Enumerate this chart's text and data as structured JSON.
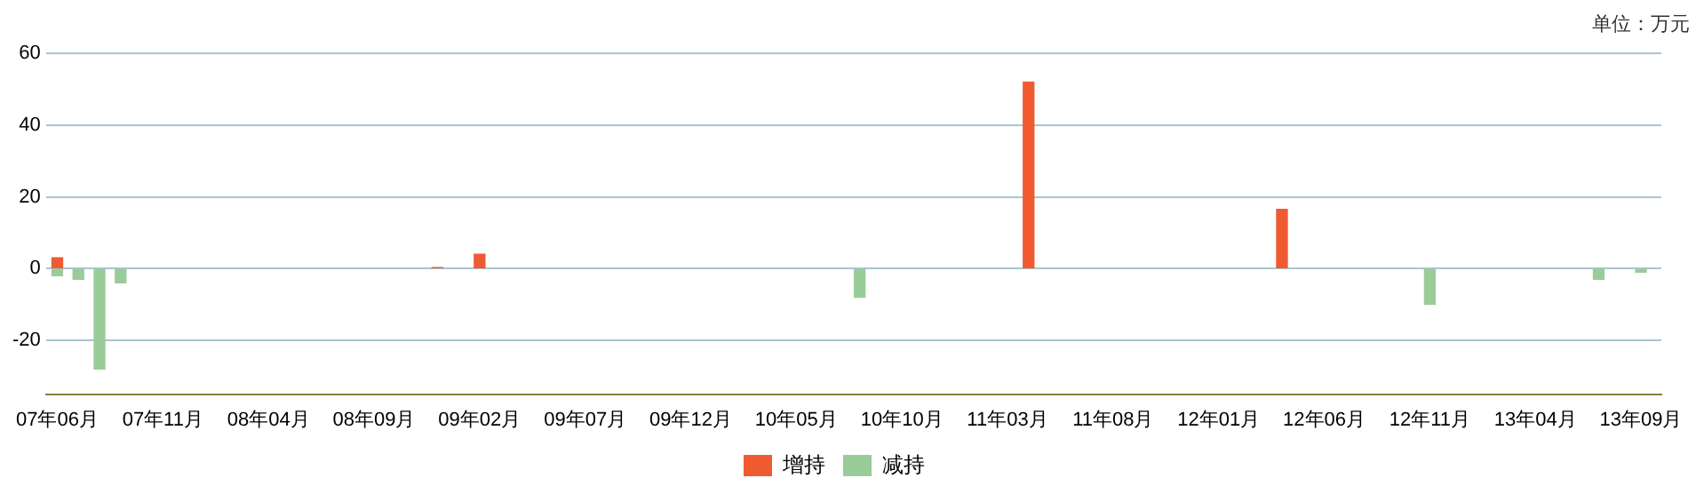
{
  "chart_data": {
    "type": "bar",
    "annotations": [
      "单位：万元"
    ],
    "series": [
      {
        "name": "增持",
        "color": "#f05a30",
        "x": [
          "2007-06",
          "2008-12",
          "2009-02",
          "2011-04",
          "2012-04"
        ],
        "values": [
          3,
          0.3,
          4,
          52,
          16.5
        ]
      },
      {
        "name": "减持",
        "color": "#99cc99",
        "x": [
          "2007-06",
          "2007-07",
          "2007-08",
          "2007-09",
          "2010-08",
          "2012-11",
          "2013-07",
          "2013-09"
        ],
        "values": [
          -2,
          -3,
          -28,
          -4,
          -8,
          -10,
          -3,
          -1
        ]
      }
    ],
    "xlim": [
      "2007-05-15",
      "2013-09-30"
    ],
    "xticks": [
      {
        "value": "2007-06",
        "label": "07年06月"
      },
      {
        "value": "2007-11",
        "label": "07年11月"
      },
      {
        "value": "2008-04",
        "label": "08年04月"
      },
      {
        "value": "2008-09",
        "label": "08年09月"
      },
      {
        "value": "2009-02",
        "label": "09年02月"
      },
      {
        "value": "2009-07",
        "label": "09年07月"
      },
      {
        "value": "2009-12",
        "label": "09年12月"
      },
      {
        "value": "2010-05",
        "label": "10年05月"
      },
      {
        "value": "2010-10",
        "label": "10年10月"
      },
      {
        "value": "2011-03",
        "label": "11年03月"
      },
      {
        "value": "2011-08",
        "label": "11年08月"
      },
      {
        "value": "2012-01",
        "label": "12年01月"
      },
      {
        "value": "2012-06",
        "label": "12年06月"
      },
      {
        "value": "2012-11",
        "label": "12年11月"
      },
      {
        "value": "2013-04",
        "label": "13年04月"
      },
      {
        "value": "2013-09",
        "label": "13年09月"
      }
    ],
    "ylim": [
      -35,
      60
    ],
    "yticks": [
      -20,
      0,
      20,
      40,
      60
    ],
    "grid": "y",
    "legend": "bottom"
  }
}
